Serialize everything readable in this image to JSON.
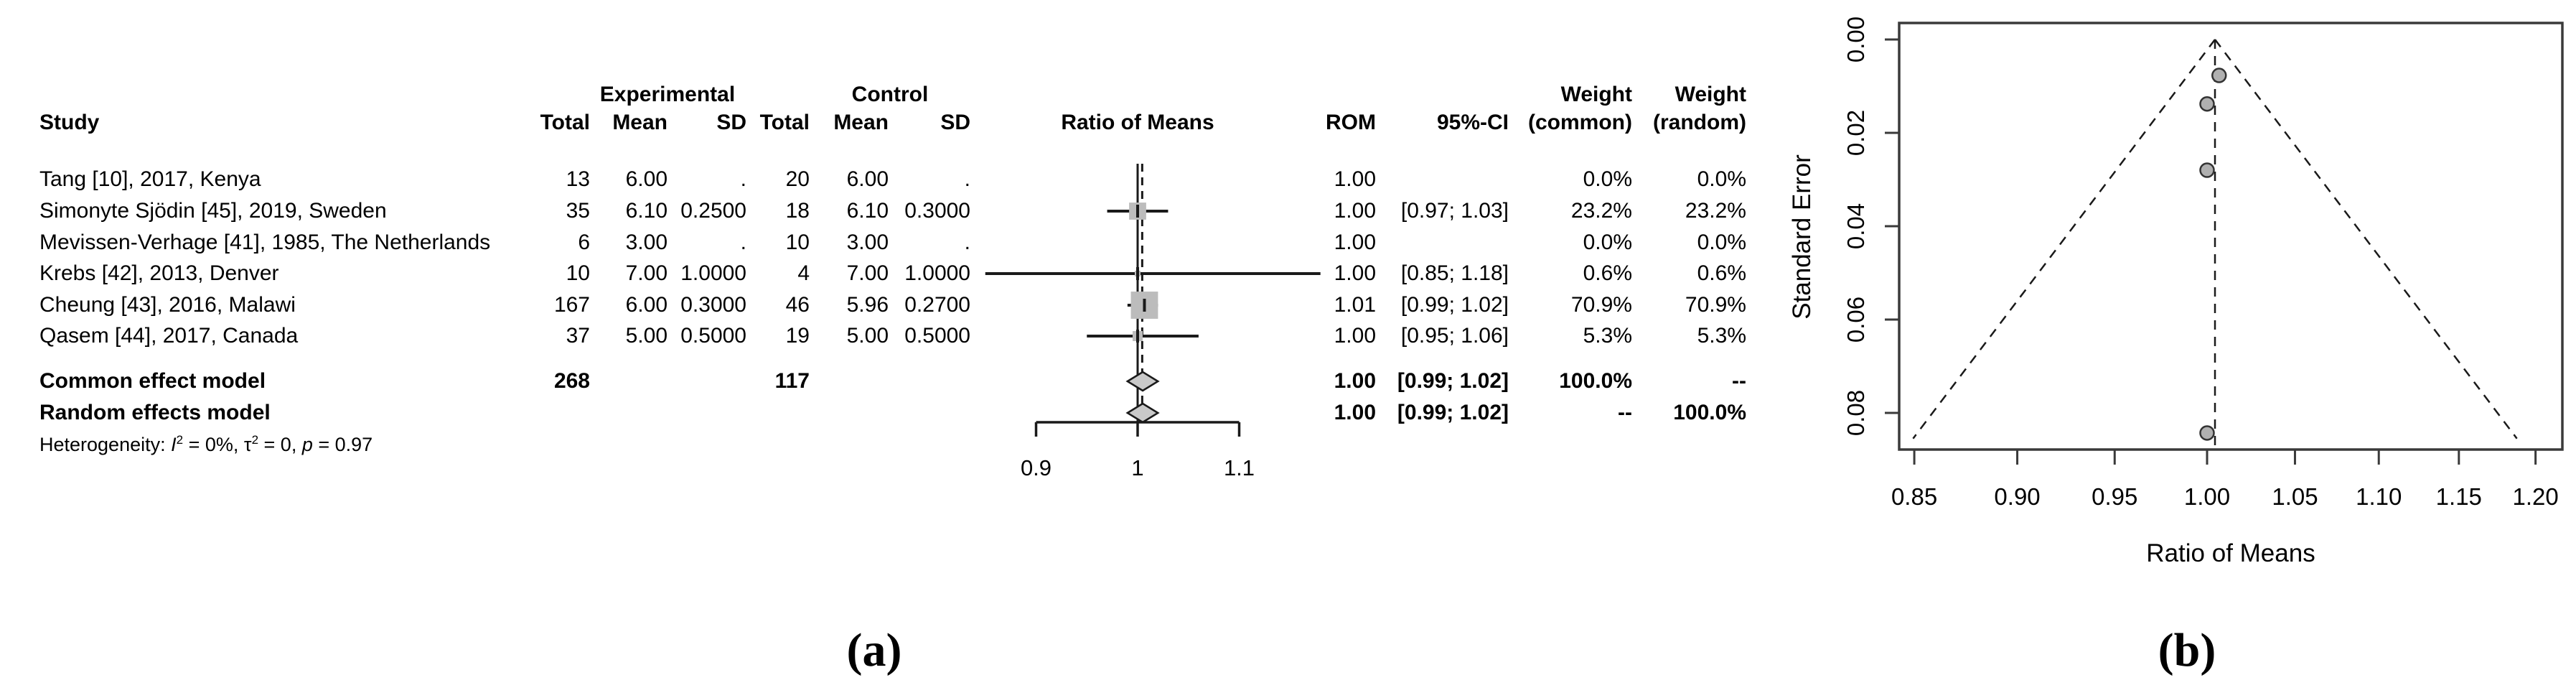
{
  "panel_a": {
    "caption": "(a)",
    "header": {
      "group_experimental": "Experimental",
      "group_control": "Control",
      "col_study": "Study",
      "col_total": "Total",
      "col_mean": "Mean",
      "col_sd": "SD",
      "plot_title": "Ratio of Means",
      "col_rom": "ROM",
      "col_ci": "95%-CI",
      "col_weight": "Weight",
      "col_weight_common_sub": "(common)",
      "col_weight_random_sub": "(random)"
    },
    "studies": [
      {
        "name": "Tang [10], 2017, Kenya",
        "exp_total": "13",
        "exp_mean": "6.00",
        "exp_sd": ".",
        "ctrl_total": "20",
        "ctrl_mean": "6.00",
        "ctrl_sd": ".",
        "rom": "1.00",
        "ci": "",
        "w_common": "0.0%",
        "w_random": "0.0%"
      },
      {
        "name": "Simonyte Sjödin [45], 2019, Sweden",
        "exp_total": "35",
        "exp_mean": "6.10",
        "exp_sd": "0.2500",
        "ctrl_total": "18",
        "ctrl_mean": "6.10",
        "ctrl_sd": "0.3000",
        "rom": "1.00",
        "ci": "[0.97; 1.03]",
        "w_common": "23.2%",
        "w_random": "23.2%"
      },
      {
        "name": "Mevissen-Verhage [41], 1985, The Netherlands",
        "exp_total": "6",
        "exp_mean": "3.00",
        "exp_sd": ".",
        "ctrl_total": "10",
        "ctrl_mean": "3.00",
        "ctrl_sd": ".",
        "rom": "1.00",
        "ci": "",
        "w_common": "0.0%",
        "w_random": "0.0%"
      },
      {
        "name": "Krebs [42], 2013, Denver",
        "exp_total": "10",
        "exp_mean": "7.00",
        "exp_sd": "1.0000",
        "ctrl_total": "4",
        "ctrl_mean": "7.00",
        "ctrl_sd": "1.0000",
        "rom": "1.00",
        "ci": "[0.85; 1.18]",
        "w_common": "0.6%",
        "w_random": "0.6%"
      },
      {
        "name": "Cheung [43], 2016, Malawi",
        "exp_total": "167",
        "exp_mean": "6.00",
        "exp_sd": "0.3000",
        "ctrl_total": "46",
        "ctrl_mean": "5.96",
        "ctrl_sd": "0.2700",
        "rom": "1.01",
        "ci": "[0.99; 1.02]",
        "w_common": "70.9%",
        "w_random": "70.9%"
      },
      {
        "name": "Qasem [44], 2017, Canada",
        "exp_total": "37",
        "exp_mean": "5.00",
        "exp_sd": "0.5000",
        "ctrl_total": "19",
        "ctrl_mean": "5.00",
        "ctrl_sd": "0.5000",
        "rom": "1.00",
        "ci": "[0.95; 1.06]",
        "w_common": "5.3%",
        "w_random": "5.3%"
      }
    ],
    "summary_common": {
      "name": "Common effect model",
      "exp_total": "268",
      "ctrl_total": "117",
      "rom": "1.00",
      "ci": "[0.99; 1.02]",
      "w_common": "100.0%",
      "w_random": "--"
    },
    "summary_random": {
      "name": "Random effects model",
      "rom": "1.00",
      "ci": "[0.99; 1.02]",
      "w_common": "--",
      "w_random": "100.0%"
    },
    "heterogeneity": {
      "prefix": "Heterogeneity: ",
      "i_sym": "I",
      "i_sup": "2",
      "i_val": " = 0%, ",
      "tau_sym": "τ",
      "tau_sup": "2",
      "tau_val": " = 0, ",
      "p_sym": "p",
      "p_val": " = 0.97"
    }
  },
  "panel_b": {
    "caption": "(b)",
    "xlabel": "Ratio of Means",
    "ylabel": "Standard Error"
  },
  "colors": {
    "line": "#1a1a1a",
    "square_fill": "#bcbcbc",
    "diamond_fill": "#c9c9c9",
    "point_fill": "#b0b0b0",
    "box_stroke": "#3a3a3a"
  },
  "chart_data": [
    {
      "type": "forest",
      "title": "Ratio of Means",
      "x_ticks": [
        {
          "value": 0.9,
          "label": "0.9"
        },
        {
          "value": 1.0,
          "label": "1"
        },
        {
          "value": 1.1,
          "label": "1.1"
        }
      ],
      "xlim": [
        0.85,
        1.18
      ],
      "null_value": 1.0,
      "pooled_estimate": 1.0045,
      "studies": [
        {
          "label": "Tang [10], 2017, Kenya",
          "rom": null,
          "ci_low": null,
          "ci_high": null,
          "weight_pct": 0.0
        },
        {
          "label": "Simonyte Sjödin [45], 2019, Sweden",
          "rom": 1.0,
          "ci_low": 0.97,
          "ci_high": 1.03,
          "weight_pct": 23.2
        },
        {
          "label": "Mevissen-Verhage [41], 1985, The Netherlands",
          "rom": null,
          "ci_low": null,
          "ci_high": null,
          "weight_pct": 0.0
        },
        {
          "label": "Krebs [42], 2013, Denver",
          "rom": 1.0,
          "ci_low": 0.85,
          "ci_high": 1.18,
          "weight_pct": 0.6
        },
        {
          "label": "Cheung [43], 2016, Malawi",
          "rom": 1.0067,
          "ci_low": 0.99,
          "ci_high": 1.02,
          "weight_pct": 70.9
        },
        {
          "label": "Qasem [44], 2017, Canada",
          "rom": 1.0,
          "ci_low": 0.95,
          "ci_high": 1.06,
          "weight_pct": 5.3
        }
      ],
      "common": {
        "label": "Common effect model",
        "rom": 1.0,
        "ci_low": 0.99,
        "ci_high": 1.02,
        "weight_common": 100.0
      },
      "random": {
        "label": "Random effects model",
        "rom": 1.0,
        "ci_low": 0.99,
        "ci_high": 1.02,
        "weight_random": 100.0
      },
      "heterogeneity": {
        "I2": "0%",
        "tau2": 0,
        "p": 0.97
      }
    },
    {
      "type": "scatter",
      "subtype": "funnel",
      "xlabel": "Ratio of Means",
      "ylabel": "Standard Error",
      "x_scale": "log",
      "xlim": [
        0.83,
        1.22
      ],
      "ylim_se": [
        0.09,
        0.0
      ],
      "x_ticks": [
        {
          "value": 0.85,
          "label": "0.85"
        },
        {
          "value": 0.9,
          "label": "0.90"
        },
        {
          "value": 0.95,
          "label": "0.95"
        },
        {
          "value": 1.0,
          "label": "1.00"
        },
        {
          "value": 1.05,
          "label": "1.05"
        },
        {
          "value": 1.1,
          "label": "1.10"
        },
        {
          "value": 1.15,
          "label": "1.15"
        },
        {
          "value": 1.2,
          "label": "1.20"
        }
      ],
      "y_ticks": [
        {
          "value": 0.0,
          "label": "0.00"
        },
        {
          "value": 0.02,
          "label": "0.02"
        },
        {
          "value": 0.04,
          "label": "0.04"
        },
        {
          "value": 0.06,
          "label": "0.06"
        },
        {
          "value": 0.08,
          "label": "0.08"
        }
      ],
      "center": 1.0044,
      "funnel_se_max": 0.0855,
      "points": [
        {
          "x": 1.0067,
          "se": 0.0077,
          "label": "Cheung [43], 2016, Malawi"
        },
        {
          "x": 1.0,
          "se": 0.0138,
          "label": "Simonyte Sjödin [45], 2019, Sweden"
        },
        {
          "x": 1.0,
          "se": 0.028,
          "label": "Qasem [44], 2017, Canada"
        },
        {
          "x": 1.0,
          "se": 0.0843,
          "label": "Krebs [42], 2013, Denver"
        }
      ]
    }
  ]
}
